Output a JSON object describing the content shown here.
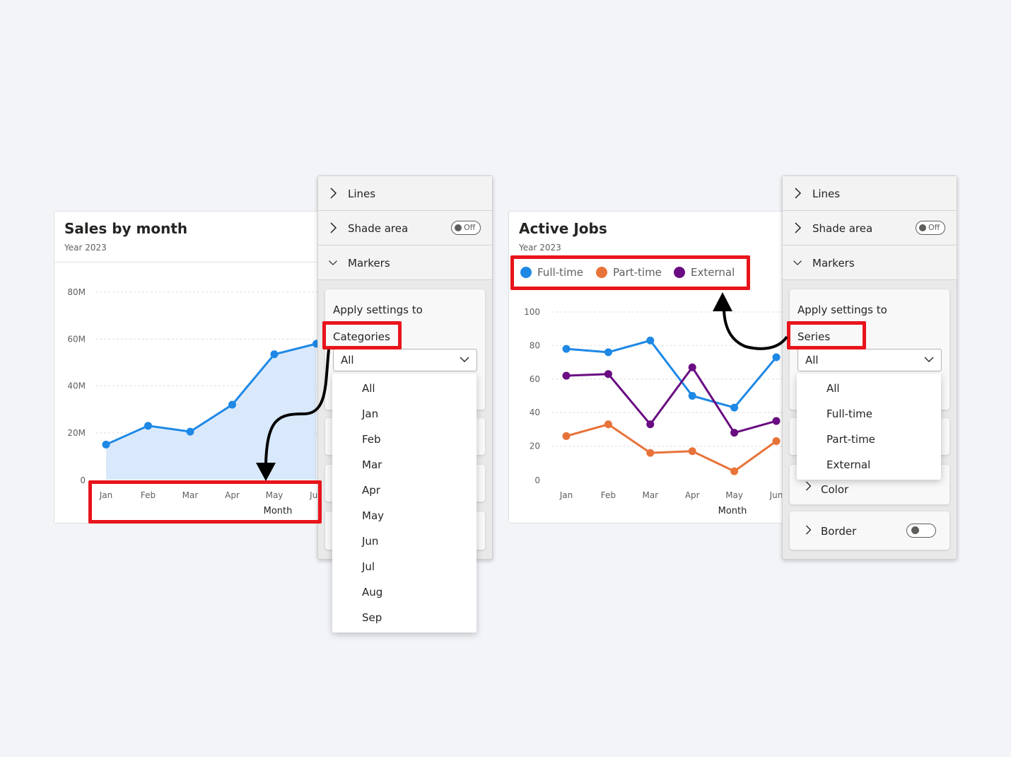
{
  "colors": {
    "blue": "#1e88e5",
    "orange": "#e8733a",
    "purple": "#6a0c82",
    "shade": "#d9e9fb",
    "highlight": "#e8141b"
  },
  "left": {
    "card": {
      "title": "Sales by month",
      "subtitle": "Year 2023"
    },
    "panel": {
      "sections": {
        "lines": "Lines",
        "shade": "Shade area",
        "markers": "Markers"
      },
      "shade_toggle": "Off",
      "apply_label": "Apply settings to",
      "apply_value": "Categories",
      "select_value": "All",
      "dropdown": [
        "All",
        "Jan",
        "Feb",
        "Mar",
        "Apr",
        "May",
        "Jun",
        "Jul",
        "Aug",
        "Sep"
      ]
    }
  },
  "right": {
    "card": {
      "title": "Active Jobs",
      "subtitle": "Year 2023"
    },
    "panel": {
      "sections": {
        "lines": "Lines",
        "shade": "Shade area",
        "markers": "Markers"
      },
      "shade_toggle": "Off",
      "apply_label": "Apply settings to",
      "apply_value": "Series",
      "select_value": "All",
      "dropdown": [
        "All",
        "Full-time",
        "Part-time",
        "External"
      ],
      "color_label": "Color",
      "border_label": "Border"
    }
  },
  "chart_data": [
    {
      "type": "area",
      "title": "Sales by month",
      "subtitle": "Year 2023",
      "xlabel": "Month",
      "ylabel": "",
      "categories": [
        "Jan",
        "Feb",
        "Mar",
        "Apr",
        "May",
        "Jun"
      ],
      "y_ticks": [
        "0",
        "20M",
        "40M",
        "60M",
        "80M"
      ],
      "ylim": [
        0,
        80000000
      ],
      "series": [
        {
          "values": [
            15000000,
            23000000,
            20500000,
            32000000,
            53500000,
            58000000
          ]
        }
      ],
      "grid": true,
      "markers": true
    },
    {
      "type": "line",
      "title": "Active Jobs",
      "subtitle": "Year 2023",
      "xlabel": "Month",
      "ylabel": "",
      "categories": [
        "Jan",
        "Feb",
        "Mar",
        "Apr",
        "May",
        "Jun"
      ],
      "y_ticks": [
        "0",
        "20",
        "40",
        "60",
        "80",
        "100"
      ],
      "ylim": [
        0,
        100
      ],
      "series": [
        {
          "name": "Full-time",
          "values": [
            78,
            76,
            83,
            50,
            43,
            73
          ]
        },
        {
          "name": "Part-time",
          "values": [
            26,
            33,
            16,
            17,
            5,
            23
          ]
        },
        {
          "name": "External",
          "values": [
            62,
            63,
            33,
            67,
            28,
            35
          ]
        }
      ],
      "legend": "top-left",
      "grid": true,
      "markers": true
    }
  ]
}
